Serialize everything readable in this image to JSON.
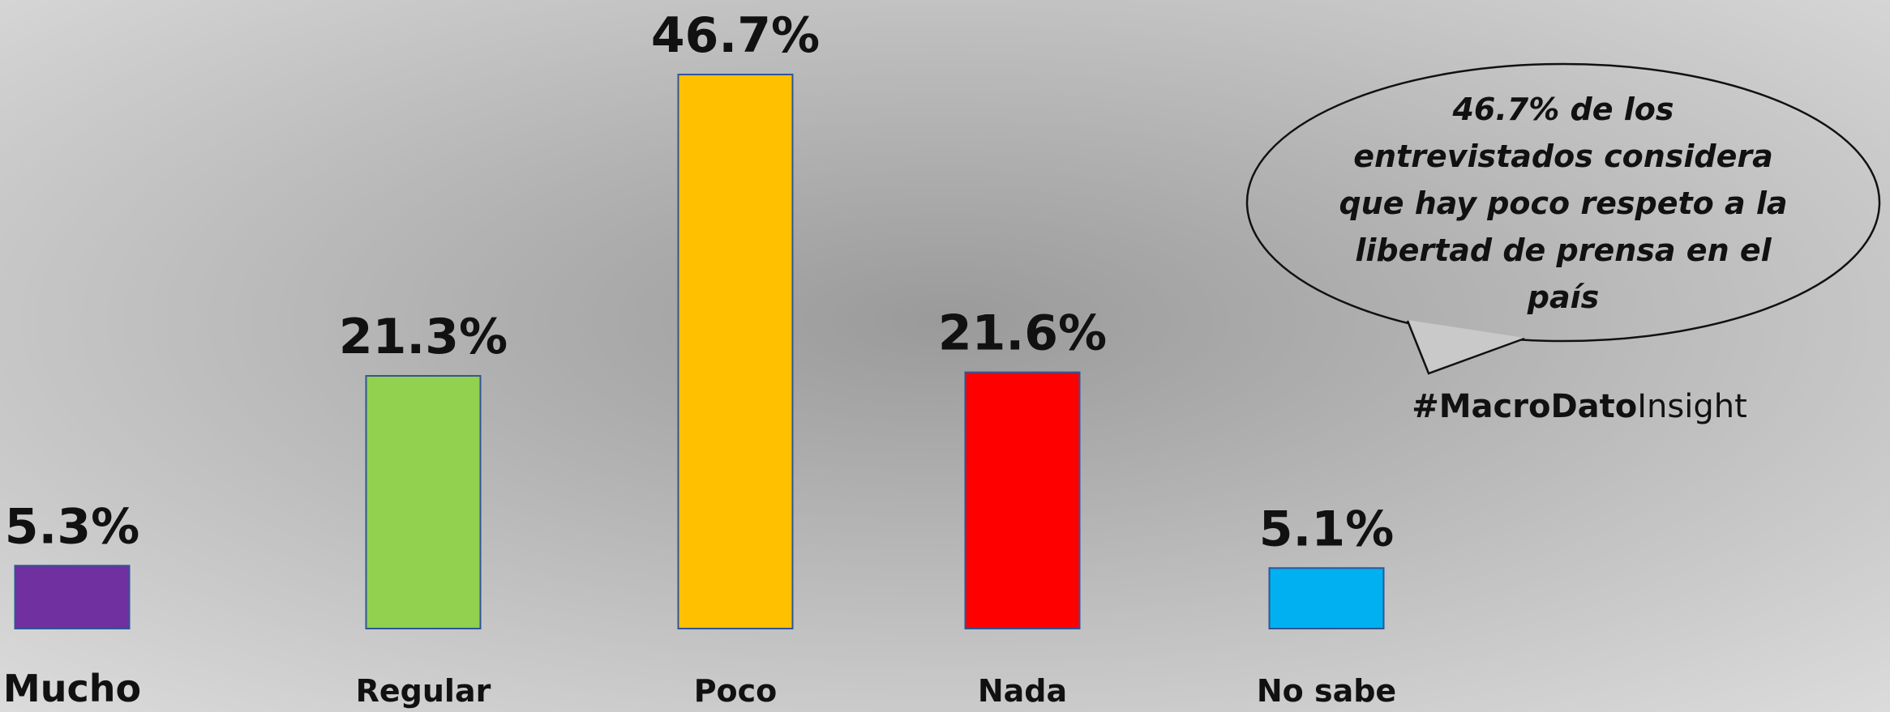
{
  "chart_data": {
    "type": "bar",
    "categories": [
      "Mucho",
      "Regular",
      "Poco",
      "Nada",
      "No sabe"
    ],
    "values": [
      5.3,
      21.3,
      46.7,
      21.6,
      5.1
    ],
    "value_labels": [
      "5.3%",
      "21.3%",
      "46.7%",
      "21.6%",
      "5.1%"
    ],
    "colors": [
      "#7030a0",
      "#92d050",
      "#ffc000",
      "#ff0000",
      "#00b0f0"
    ],
    "annotation": [
      "46.7% de los",
      "entrevistados considera",
      "que hay poco respeto a la",
      "libertad de prensa en el",
      "país"
    ],
    "hashtag": {
      "bold": "#MacroDato",
      "normal": "Insight"
    }
  }
}
